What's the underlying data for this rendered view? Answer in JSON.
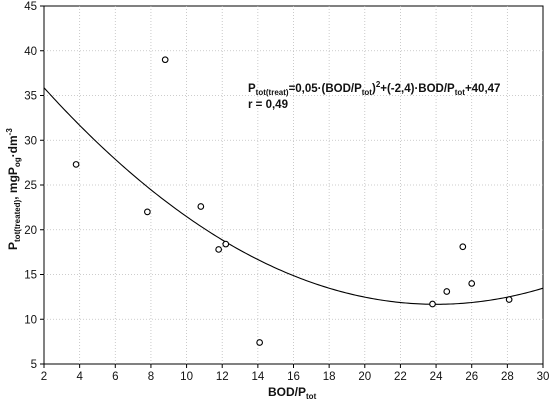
{
  "chart_data": {
    "type": "scatter",
    "xlabel_main": "BOD/P",
    "xlabel_sub": "tot",
    "ylabel_parts": {
      "p": "P",
      "sub1": "tot(treated)",
      "mid": ", mgP",
      "sub2": "og",
      "mid2": "·dm",
      "sup": "-3"
    },
    "xlim": [
      2,
      30
    ],
    "ylim": [
      5,
      45
    ],
    "xticks": [
      2,
      4,
      6,
      8,
      10,
      12,
      14,
      16,
      18,
      20,
      22,
      24,
      26,
      28,
      30
    ],
    "yticks": [
      5,
      10,
      15,
      20,
      25,
      30,
      35,
      40,
      45
    ],
    "grid": true,
    "points": [
      {
        "x": 3.8,
        "y": 27.3
      },
      {
        "x": 7.8,
        "y": 22.0
      },
      {
        "x": 8.8,
        "y": 39.0
      },
      {
        "x": 10.8,
        "y": 22.6
      },
      {
        "x": 11.8,
        "y": 17.8
      },
      {
        "x": 12.2,
        "y": 18.4
      },
      {
        "x": 14.1,
        "y": 7.4
      },
      {
        "x": 23.8,
        "y": 11.7
      },
      {
        "x": 24.6,
        "y": 13.1
      },
      {
        "x": 25.5,
        "y": 18.1
      },
      {
        "x": 26.0,
        "y": 14.0
      },
      {
        "x": 28.1,
        "y": 12.2
      }
    ],
    "fit": {
      "a": 0.05,
      "b": -2.4,
      "c": 40.47
    },
    "equation": {
      "p": "P",
      "sub1": "tot(treat)",
      "part1": "=0,05·(BOD/P",
      "sub2": "tot",
      "part2": ")",
      "sup": "2",
      "part3": "+(-2,4)·BOD/P",
      "sub3": "tot",
      "part4": "+40,47"
    },
    "r_label": "r = 0,49"
  }
}
